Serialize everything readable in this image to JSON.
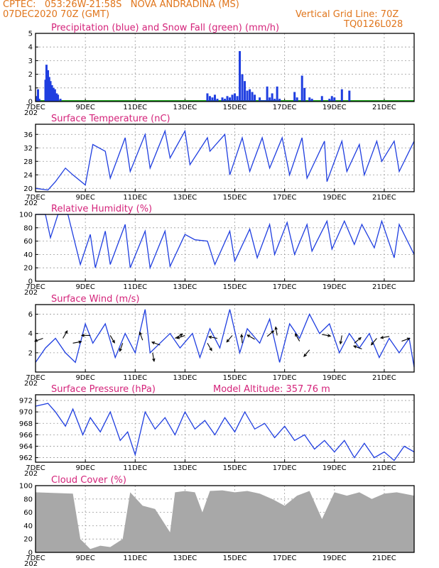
{
  "header": {
    "line1": "CPTEC:   053:26W-21:58S   NOVA ANDRADINA (MS)",
    "line2_left": "07DEC2020 70Z (GMT)",
    "line2_right": "Vertical Grid Line: 70Z",
    "line3_right": "TQ0126L028",
    "color": "#e0751b"
  },
  "x_axis": {
    "labels": [
      "7DEC",
      "9DEC",
      "11DEC",
      "13DEC",
      "15DEC",
      "17DEC",
      "19DEC",
      "21DEC"
    ],
    "year_fragment": "202",
    "range_days": [
      0,
      15.2
    ]
  },
  "chart_data": [
    {
      "type": "bar",
      "title": "Precipitation (blue) and Snow Fall (green) (mm/h)",
      "ylim": [
        0,
        5
      ],
      "yticks": [
        0,
        1,
        2,
        3,
        4,
        5
      ],
      "colors": {
        "precip": "#1f3ee0",
        "snow": "#22aa22"
      },
      "precip_days": [
        0.06,
        0.1,
        0.15,
        0.4,
        0.44,
        0.5,
        0.55,
        0.6,
        0.66,
        0.72,
        0.78,
        0.85,
        0.9,
        1.0,
        6.9,
        7.0,
        7.1,
        7.2,
        7.3,
        7.5,
        7.6,
        7.7,
        7.8,
        7.9,
        8.0,
        8.1,
        8.2,
        8.3,
        8.4,
        8.5,
        8.6,
        8.7,
        8.8,
        9.0,
        9.1,
        9.2,
        9.3,
        9.4,
        9.5,
        9.6,
        9.7,
        9.8,
        10.4,
        10.5,
        10.7,
        10.8,
        11.0,
        11.1,
        11.5,
        11.8,
        11.9,
        12.0,
        12.3,
        12.6
      ],
      "precip_values": [
        0.4,
        0.9,
        0.2,
        1.6,
        2.7,
        2.3,
        1.8,
        1.5,
        1.2,
        1.0,
        0.9,
        0.6,
        0.5,
        0.2,
        0.6,
        0.4,
        0.3,
        0.5,
        0.2,
        0.3,
        0.2,
        0.4,
        0.3,
        0.5,
        0.6,
        0.4,
        3.7,
        2.0,
        1.5,
        0.8,
        0.9,
        0.7,
        0.5,
        0.3,
        0.1,
        0.1,
        1.1,
        0.3,
        0.6,
        0.2,
        1.1,
        0.2,
        0.7,
        0.3,
        1.9,
        1.0,
        0.3,
        0.2,
        0.4,
        0.2,
        0.4,
        0.3,
        0.9,
        0.8
      ]
    },
    {
      "type": "line",
      "title": "Surface Temperature (nC)",
      "ylim": [
        19,
        39
      ],
      "yticks": [
        20,
        24,
        28,
        32,
        36
      ],
      "color": "#1f3ee0",
      "x": [
        0,
        0.5,
        0.8,
        1.2,
        1.5,
        2.0,
        2.3,
        2.8,
        3.0,
        3.6,
        3.8,
        4.4,
        4.6,
        5.2,
        5.4,
        6.0,
        6.2,
        6.9,
        7.0,
        7.6,
        7.8,
        8.3,
        8.6,
        9.1,
        9.4,
        9.9,
        10.2,
        10.7,
        10.9,
        11.6,
        11.7,
        12.3,
        12.5,
        13.0,
        13.2,
        13.7,
        13.9,
        14.4,
        14.6,
        15.2
      ],
      "y": [
        20,
        19.5,
        22,
        26,
        24,
        21,
        33,
        31,
        23,
        35,
        25,
        36,
        26,
        37,
        29,
        37,
        27,
        35,
        31,
        36,
        24,
        35,
        25,
        35,
        26,
        35,
        24,
        35,
        23,
        34,
        22,
        34,
        25,
        33,
        24,
        34,
        28,
        34,
        25,
        34
      ]
    },
    {
      "type": "line",
      "title": "Relative Humidity (%)",
      "ylim": [
        0,
        100
      ],
      "yticks": [
        0,
        20,
        40,
        60,
        80,
        100
      ],
      "color": "#1f3ee0",
      "x": [
        0,
        0.4,
        0.6,
        0.9,
        1.3,
        1.8,
        2.2,
        2.4,
        2.8,
        3.0,
        3.6,
        3.8,
        4.4,
        4.6,
        5.2,
        5.4,
        6.0,
        6.4,
        6.9,
        7.2,
        7.8,
        8.0,
        8.6,
        8.9,
        9.4,
        9.6,
        10.1,
        10.4,
        10.9,
        11.1,
        11.7,
        11.9,
        12.4,
        12.8,
        13.1,
        13.6,
        13.9,
        14.4,
        14.6,
        15.2
      ],
      "y": [
        100,
        100,
        65,
        100,
        100,
        25,
        70,
        20,
        75,
        25,
        85,
        20,
        75,
        20,
        75,
        22,
        70,
        62,
        60,
        25,
        75,
        30,
        78,
        35,
        85,
        40,
        88,
        40,
        85,
        45,
        90,
        48,
        90,
        55,
        85,
        50,
        90,
        35,
        85,
        40
      ]
    },
    {
      "type": "line",
      "title": "Surface Wind (m/s)",
      "ylim": [
        0,
        7
      ],
      "yticks": [
        2,
        4,
        6
      ],
      "color": "#1f3ee0",
      "x": [
        0,
        0.4,
        0.8,
        1.2,
        1.6,
        2.0,
        2.3,
        2.8,
        3.2,
        3.6,
        4.0,
        4.4,
        4.6,
        5.0,
        5.4,
        5.8,
        6.3,
        6.6,
        7.0,
        7.4,
        7.8,
        8.2,
        8.5,
        9.0,
        9.4,
        9.8,
        10.2,
        10.6,
        11.0,
        11.4,
        11.8,
        12.2,
        12.6,
        13.0,
        13.4,
        13.8,
        14.2,
        14.6,
        15.0,
        15.2
      ],
      "y": [
        1,
        2.5,
        3.5,
        2,
        1,
        5,
        3,
        5,
        1.5,
        4,
        2,
        6.5,
        2,
        3,
        4,
        2.5,
        4,
        1.5,
        4.5,
        2.5,
        6.5,
        2,
        4.5,
        3,
        5.5,
        1,
        5,
        3.5,
        6,
        4,
        5,
        2,
        4,
        2.5,
        4,
        1.5,
        3.5,
        2,
        3.5,
        0.5
      ],
      "vector_days": [
        0.3,
        1.1,
        1.5,
        2.2,
        3.0,
        3.5,
        4.3,
        4.7,
        5.0,
        5.6,
        6.0,
        6.9,
        7.3,
        7.9,
        8.3,
        8.8,
        9.3,
        9.7,
        10.6,
        11.0,
        11.5,
        12.3,
        12.8,
        13.1,
        13.7,
        14.2,
        14.7
      ],
      "vector_level": [
        3.5,
        3.5,
        3,
        3.8,
        3.8,
        3,
        3.3,
        2,
        2.8,
        3.5,
        3.8,
        3,
        3.5,
        3.8,
        3,
        3.4,
        3.7,
        3.8,
        3.2,
        2.3,
        3.9,
        3.8,
        3.0,
        2.4,
        3.5,
        3.7,
        3.2
      ],
      "vector_angle_deg": [
        200,
        60,
        10,
        180,
        300,
        250,
        110,
        280,
        160,
        30,
        200,
        300,
        170,
        230,
        95,
        150,
        40,
        100,
        120,
        230,
        350,
        260,
        40,
        160,
        230,
        190,
        20
      ]
    },
    {
      "type": "line",
      "title": "Surface Pressure (hPa)",
      "subtitle": "Model Altitude: 357.76 m",
      "ylim": [
        961.2,
        973
      ],
      "yticks": [
        962,
        964,
        966,
        968,
        970,
        972
      ],
      "color": "#1f3ee0",
      "x": [
        0,
        0.5,
        0.8,
        1.2,
        1.5,
        1.9,
        2.2,
        2.6,
        3.0,
        3.4,
        3.7,
        4.0,
        4.4,
        4.8,
        5.2,
        5.6,
        6.0,
        6.4,
        6.8,
        7.2,
        7.6,
        8.0,
        8.4,
        8.8,
        9.2,
        9.6,
        10.0,
        10.4,
        10.8,
        11.2,
        11.6,
        12.0,
        12.4,
        12.8,
        13.2,
        13.6,
        14.0,
        14.4,
        14.8,
        15.2
      ],
      "y": [
        971,
        971.5,
        970,
        967.5,
        970.5,
        966,
        969,
        966.5,
        970,
        965,
        966.5,
        962.5,
        970,
        967,
        969,
        966,
        970,
        967,
        968.5,
        966,
        969,
        966.5,
        970,
        967,
        968,
        965.5,
        967.5,
        965,
        966,
        963.5,
        965,
        963,
        965,
        962,
        964.5,
        962,
        963,
        961.5,
        964,
        963
      ]
    },
    {
      "type": "area",
      "title": "Cloud Cover (%)",
      "ylim": [
        0,
        100
      ],
      "yticks": [
        0,
        20,
        40,
        60,
        80,
        100
      ],
      "color": "#a8a8a8",
      "x": [
        0,
        1.5,
        1.8,
        2.2,
        2.6,
        3.0,
        3.5,
        3.8,
        4.3,
        4.8,
        5.4,
        5.6,
        6.0,
        6.4,
        6.7,
        7.0,
        7.5,
        8.0,
        8.5,
        9.0,
        9.5,
        10.0,
        10.5,
        11.0,
        11.5,
        12.0,
        12.5,
        13.0,
        13.5,
        14.0,
        14.5,
        15.2
      ],
      "y": [
        90,
        88,
        20,
        5,
        10,
        8,
        20,
        90,
        70,
        65,
        30,
        90,
        92,
        90,
        60,
        92,
        93,
        90,
        92,
        88,
        80,
        70,
        85,
        92,
        50,
        90,
        85,
        90,
        80,
        88,
        90,
        85
      ]
    }
  ]
}
